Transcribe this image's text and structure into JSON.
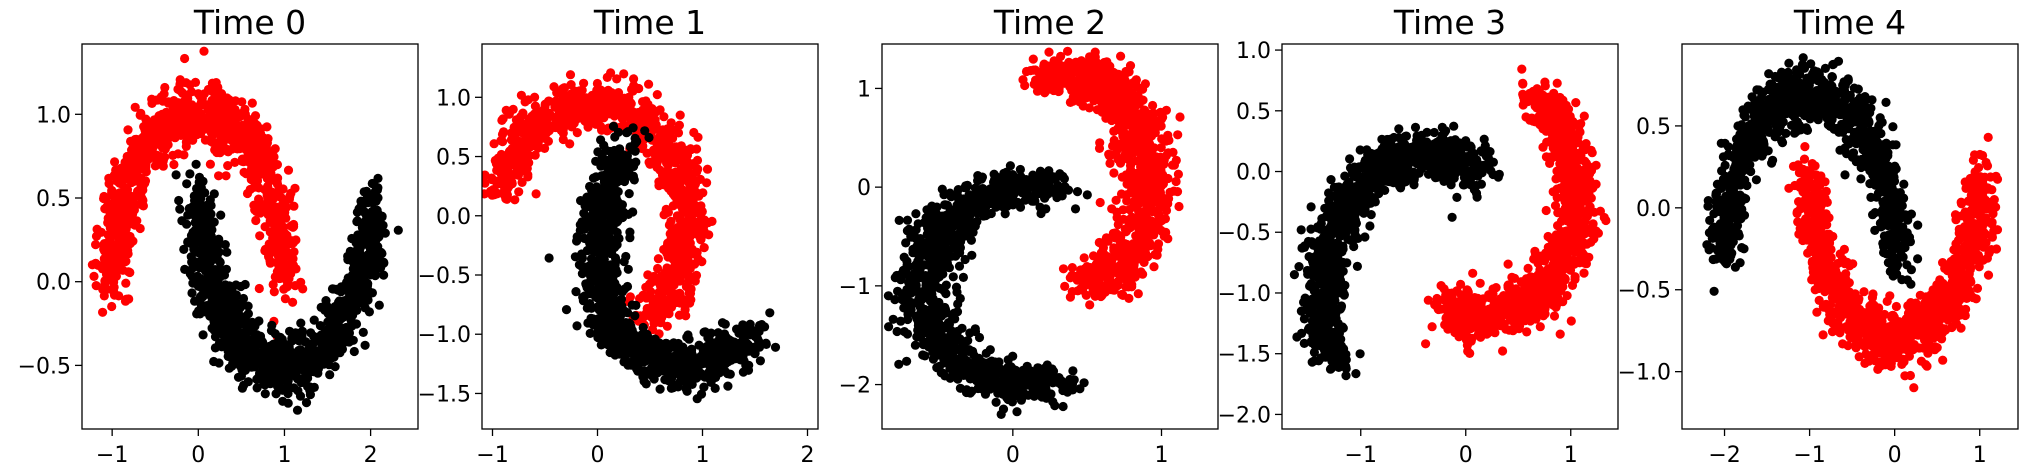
{
  "colors": {
    "class_a": "#000000",
    "class_b": "#ff0000"
  },
  "chart_data": [
    {
      "type": "scatter",
      "title": "Time 0",
      "xlim": [
        -1.35,
        2.55
      ],
      "ylim": [
        -0.88,
        1.42
      ],
      "xticks": [
        -1,
        0,
        1,
        2
      ],
      "yticks": [
        -0.5,
        0.0,
        0.5,
        1.0
      ],
      "xtick_labels": [
        "−1",
        "0",
        "1",
        "2"
      ],
      "ytick_labels": [
        "−0.5",
        "0.0",
        "0.5",
        "1.0"
      ],
      "series": [
        {
          "color": "#ff0000",
          "shape": "arc",
          "cx": 0.0,
          "cy": 0.0,
          "r": 1.0,
          "theta_start": 0,
          "theta_end": 180,
          "x_scale": 1.0,
          "y_scale": 1.0,
          "rotation": 0,
          "shift": [
            0.0,
            0.0
          ],
          "noise": 0.1
        },
        {
          "color": "#000000",
          "shape": "arc",
          "cx": 1.0,
          "cy": 0.5,
          "r": 1.0,
          "theta_start": 180,
          "theta_end": 360,
          "x_scale": 1.0,
          "y_scale": 1.0,
          "rotation": 0,
          "shift": [
            0.0,
            0.0
          ],
          "noise": 0.1
        }
      ]
    },
    {
      "type": "scatter",
      "title": "Time 1",
      "xlim": [
        -1.1,
        2.1
      ],
      "ylim": [
        -1.8,
        1.45
      ],
      "xticks": [
        -1,
        0,
        1,
        2
      ],
      "yticks": [
        -1.5,
        -1.0,
        -0.5,
        0.0,
        0.5,
        1.0
      ],
      "xtick_labels": [
        "−1",
        "0",
        "1",
        "2"
      ],
      "ytick_labels": [
        "−1.5",
        "−1.0",
        "−0.5",
        "0.0",
        "0.5",
        "1.0"
      ],
      "series": [
        {
          "color": "#ff0000",
          "shape": "arc",
          "cx": -0.05,
          "cy": -0.05,
          "r": 1.0,
          "theta_start": -55,
          "theta_end": 165,
          "x_scale": 0.9,
          "y_scale": 1.0,
          "rotation": 0,
          "shift": [
            0.0,
            0.0
          ],
          "noise": 0.1
        },
        {
          "color": "#000000",
          "shape": "arc",
          "cx": 1.15,
          "cy": 0.15,
          "r": 1.05,
          "theta_start": 180,
          "theta_end": 330,
          "x_scale": 0.95,
          "y_scale": 1.4,
          "rotation": -30,
          "shift": [
            0.0,
            -0.05
          ],
          "noise": 0.1
        }
      ]
    },
    {
      "type": "scatter",
      "title": "Time 2",
      "xlim": [
        -0.88,
        1.38
      ],
      "ylim": [
        -2.45,
        1.45
      ],
      "xticks": [
        0,
        1
      ],
      "yticks": [
        -2,
        -1,
        0,
        1
      ],
      "xtick_labels": [
        "0",
        "1"
      ],
      "ytick_labels": [
        "−2",
        "−1",
        "0",
        "1"
      ],
      "series": [
        {
          "color": "#ff0000",
          "shape": "arc",
          "cx": 0.4,
          "cy": 0.05,
          "r": 1.0,
          "theta_start": -75,
          "theta_end": 110,
          "x_scale": 0.5,
          "y_scale": 1.1,
          "rotation": 0,
          "shift": [
            0.0,
            0.0
          ],
          "noise": 0.1
        },
        {
          "color": "#000000",
          "shape": "arc",
          "cx": 0.1,
          "cy": -1.0,
          "r": 1.0,
          "theta_start": 75,
          "theta_end": 285,
          "x_scale": 0.7,
          "y_scale": 1.0,
          "rotation": 0,
          "shift": [
            0.0,
            0.0
          ],
          "noise": 0.1
        }
      ]
    },
    {
      "type": "scatter",
      "title": "Time 3",
      "xlim": [
        -1.75,
        1.45
      ],
      "ylim": [
        -2.12,
        1.05
      ],
      "xticks": [
        -1,
        0,
        1
      ],
      "yticks": [
        -2.0,
        -1.5,
        -1.0,
        -0.5,
        0.0,
        0.5,
        1.0
      ],
      "xtick_labels": [
        "−1",
        "0",
        "1"
      ],
      "ytick_labels": [
        "−2.0",
        "−1.5",
        "−1.0",
        "−0.5",
        "0.0",
        "0.5",
        "1.0"
      ],
      "series": [
        {
          "color": "#ff0000",
          "shape": "arc",
          "cx": 0.15,
          "cy": -0.2,
          "r": 1.0,
          "theta_start": -110,
          "theta_end": 55,
          "x_scale": 0.9,
          "y_scale": 1.0,
          "rotation": 0,
          "shift": [
            0.0,
            0.0
          ],
          "noise": 0.1
        },
        {
          "color": "#000000",
          "shape": "arc",
          "cx": -0.35,
          "cy": -1.05,
          "r": 1.0,
          "theta_start": 60,
          "theta_end": 205,
          "x_scale": 1.0,
          "y_scale": 1.2,
          "rotation": 0,
          "shift": [
            0.0,
            0.0
          ],
          "noise": 0.1
        }
      ]
    },
    {
      "type": "scatter",
      "title": "Time 4",
      "xlim": [
        -2.5,
        1.45
      ],
      "ylim": [
        -1.35,
        1.0
      ],
      "xticks": [
        -2,
        -1,
        0,
        1
      ],
      "yticks": [
        -1.0,
        -0.5,
        0.0,
        0.5
      ],
      "xtick_labels": [
        "−2",
        "−1",
        "0",
        "1"
      ],
      "ytick_labels": [
        "−1.0",
        "−0.5",
        "0.0",
        "0.5"
      ],
      "series": [
        {
          "color": "#000000",
          "shape": "arc",
          "cx": -1.0,
          "cy": -0.3,
          "r": 1.0,
          "theta_start": 0,
          "theta_end": 180,
          "x_scale": 1.0,
          "y_scale": 1.0,
          "rotation": 0,
          "shift": [
            0.0,
            0.0
          ],
          "noise": 0.1
        },
        {
          "color": "#ff0000",
          "shape": "arc",
          "cx": 0.0,
          "cy": 0.2,
          "r": 1.0,
          "theta_start": 180,
          "theta_end": 360,
          "x_scale": 1.0,
          "y_scale": 1.0,
          "rotation": 0,
          "shift": [
            0.0,
            0.0
          ],
          "noise": 0.1
        }
      ]
    }
  ]
}
